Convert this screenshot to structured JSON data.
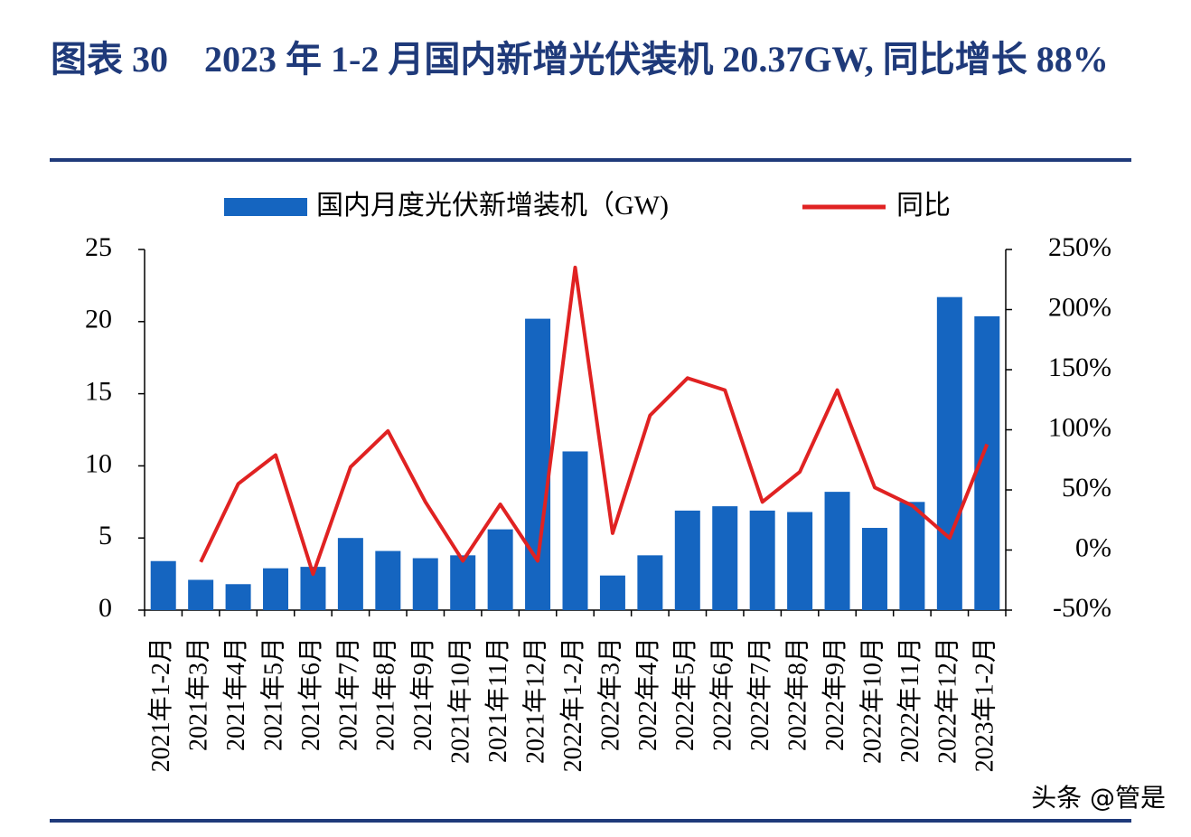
{
  "chart_data": {
    "type": "bar-line",
    "title": "图表 30　2023 年 1-2 月国内新增光伏装机 20.37GW, 同比增长 88%",
    "categories": [
      "2021年1-2月",
      "2021年3月",
      "2021年4月",
      "2021年5月",
      "2021年6月",
      "2021年7月",
      "2021年8月",
      "2021年9月",
      "2021年10月",
      "2021年11月",
      "2021年12月",
      "2022年1-2月",
      "2022年3月",
      "2022年4月",
      "2022年5月",
      "2022年6月",
      "2022年7月",
      "2022年8月",
      "2022年9月",
      "2022年10月",
      "2022年11月",
      "2022年12月",
      "2023年1-2月"
    ],
    "series": [
      {
        "name": "国内月度光伏新增装机（GW)",
        "type": "bar",
        "color": "#1565c0",
        "values": [
          3.4,
          2.1,
          1.8,
          2.9,
          3.0,
          5.0,
          4.1,
          3.6,
          3.8,
          5.6,
          20.2,
          11.0,
          2.4,
          3.8,
          6.9,
          7.2,
          6.9,
          6.8,
          8.2,
          5.7,
          7.5,
          21.7,
          20.37
        ]
      },
      {
        "name": "同比",
        "type": "line",
        "color": "#e02222",
        "axis": "y2",
        "values": [
          null,
          -10,
          55,
          79,
          -20,
          69,
          99,
          40,
          -9,
          38,
          -9,
          235,
          14,
          112,
          143,
          133,
          40,
          65,
          133,
          52,
          37,
          10,
          88
        ]
      }
    ],
    "ylim": [
      0,
      25
    ],
    "yticks": [
      0,
      5,
      10,
      15,
      20,
      25
    ],
    "y2lim": [
      -50,
      250
    ],
    "y2ticks": [
      {
        "value": -50,
        "label": "-50%"
      },
      {
        "value": 0,
        "label": "0%"
      },
      {
        "value": 50,
        "label": "50%"
      },
      {
        "value": 100,
        "label": "100%"
      },
      {
        "value": 150,
        "label": "150%"
      },
      {
        "value": 200,
        "label": "200%"
      },
      {
        "value": 250,
        "label": "250%"
      }
    ],
    "grid": false
  },
  "watermark": "头条 @管是"
}
